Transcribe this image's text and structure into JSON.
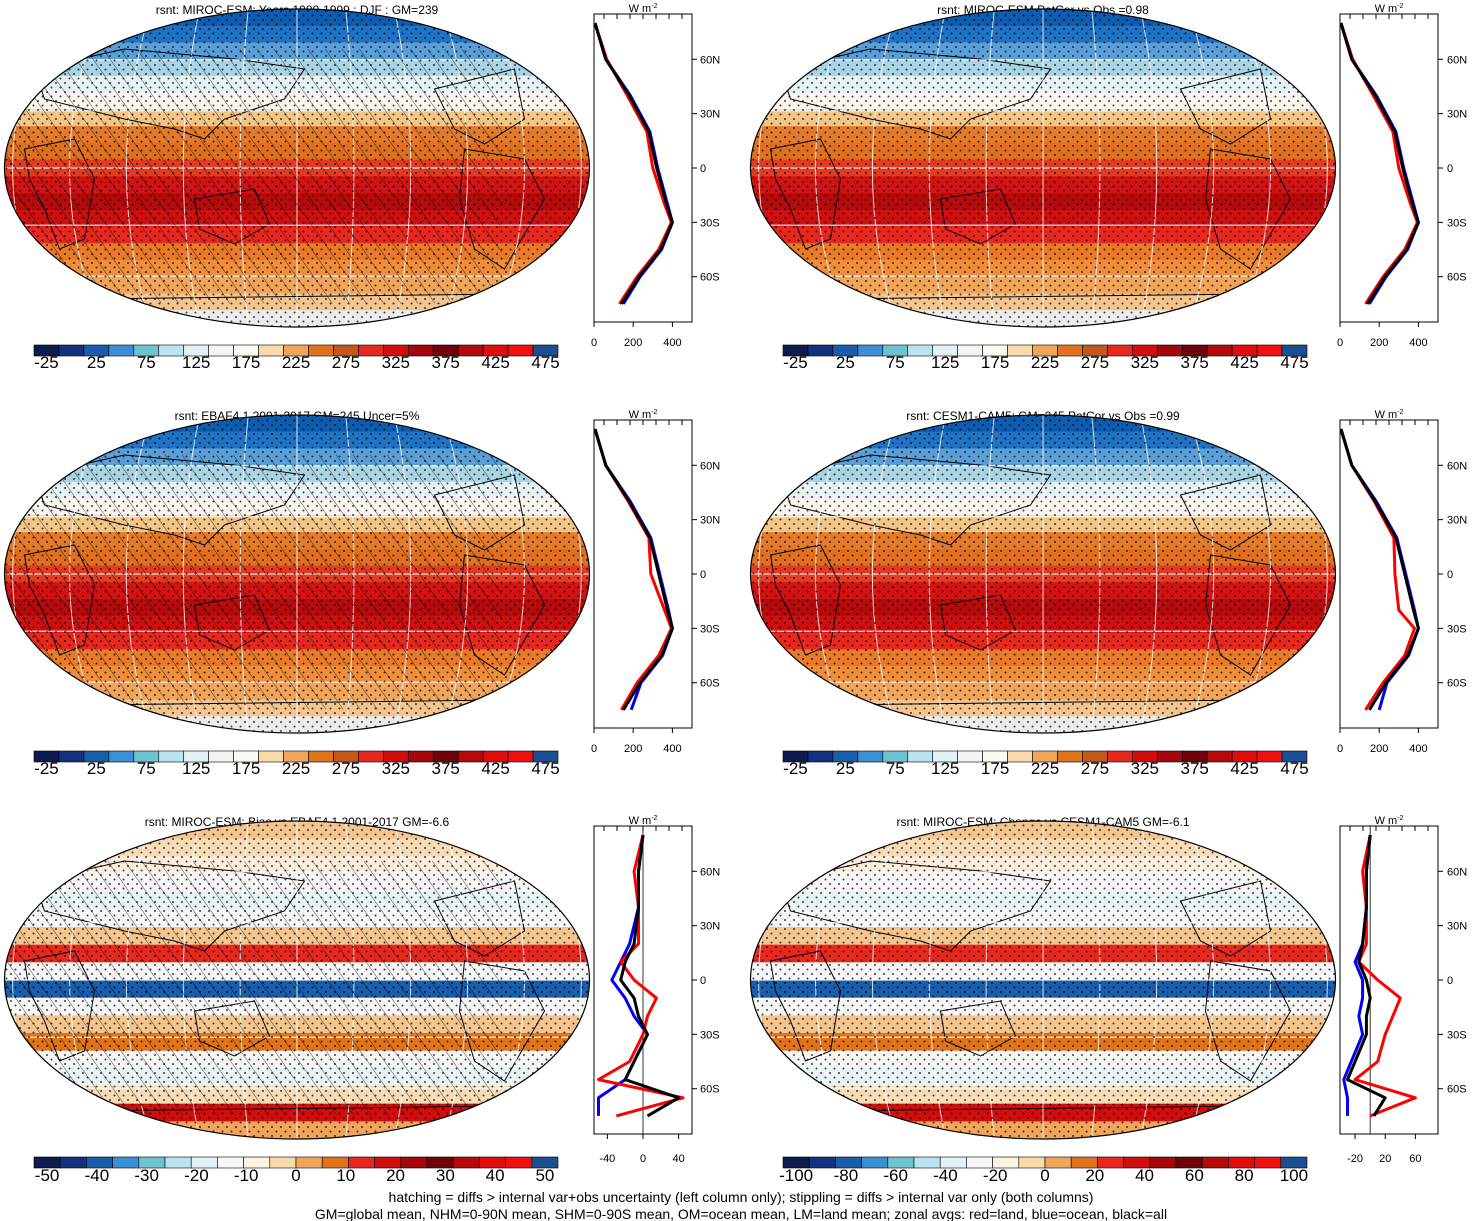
{
  "colors": {
    "land": "#ff0000",
    "ocean": "#0000ff",
    "all": "#000000"
  },
  "abs_palette": [
    "#0d1b4f",
    "#12317e",
    "#1a5dab",
    "#3b8fd4",
    "#6fc2cf",
    "#b7e4ef",
    "#e3f1f6",
    "#f4f4f4",
    "#fbfbf3",
    "#f8d9a8",
    "#f0a55a",
    "#e0741c",
    "#c4581c",
    "#e7281f",
    "#d20d0d",
    "#a4070c",
    "#6e0409",
    "#b50a0a",
    "#e00d0d",
    "#f01010",
    "#1b4f93"
  ],
  "bias_palette": [
    "#0d1b4f",
    "#12317e",
    "#1a5dab",
    "#3b8fd4",
    "#6fc2cf",
    "#b7e4ef",
    "#e3f1f6",
    "#f7f7f7",
    "#fbf3e2",
    "#f8d9a8",
    "#f0a55a",
    "#e0741c",
    "#e7281f",
    "#d20d0d",
    "#a4070c",
    "#6e0409",
    "#b50a0a",
    "#e00d0d",
    "#f01010",
    "#1b4f93"
  ],
  "panels": [
    {
      "title": "rsnt: MIROC-ESM: Years 1980-1999 : DJF : GM=239",
      "kind": "abs",
      "hatching": true,
      "colorbar_labels": [
        "-25",
        "25",
        "75",
        "125",
        "175",
        "225",
        "275",
        "325",
        "375",
        "425",
        "475"
      ],
      "zonal": {
        "unit": "W m-2",
        "xticks": [
          "0",
          "200",
          "400"
        ],
        "xmin": 0,
        "xmax": 500,
        "show_lat_labels": true
      }
    },
    {
      "title": "rsnt: MIROC-ESM PatCor vs Obs =0.98",
      "kind": "abs",
      "hatching": false,
      "colorbar_labels": [
        "-25",
        "25",
        "75",
        "125",
        "175",
        "225",
        "275",
        "325",
        "375",
        "425",
        "475"
      ],
      "zonal": {
        "unit": "W m-2",
        "xticks": [
          "0",
          "200",
          "400"
        ],
        "xmin": 0,
        "xmax": 500,
        "show_lat_labels": true
      }
    },
    {
      "title": "rsnt: EBAF4.1 2001-2017 GM=245 Uncer=5%",
      "kind": "abs",
      "hatching": true,
      "colorbar_labels": [
        "-25",
        "25",
        "75",
        "125",
        "175",
        "225",
        "275",
        "325",
        "375",
        "425",
        "475"
      ],
      "zonal": {
        "unit": "W m-2",
        "xticks": [
          "0",
          "200",
          "400"
        ],
        "xmin": 0,
        "xmax": 500,
        "show_lat_labels": true
      }
    },
    {
      "title": "rsnt: CESM1-CAM5: GM=245 PatCor vs Obs =0.99",
      "kind": "abs",
      "hatching": false,
      "colorbar_labels": [
        "-25",
        "25",
        "75",
        "125",
        "175",
        "225",
        "275",
        "325",
        "375",
        "425",
        "475"
      ],
      "zonal": {
        "unit": "W m-2",
        "xticks": [
          "0",
          "200",
          "400"
        ],
        "xmin": 0,
        "xmax": 500,
        "show_lat_labels": true
      }
    },
    {
      "title": "rsnt: MIROC-ESM: Bias vs EBAF4.1 2001-2017 GM=-6.6",
      "kind": "bias",
      "hatching": true,
      "colorbar_labels": [
        "-50",
        "-40",
        "-30",
        "-20",
        "-10",
        "0",
        "10",
        "20",
        "30",
        "40",
        "50"
      ],
      "zonal": {
        "unit": "W m-2",
        "xticks": [
          "-40",
          "0",
          "40"
        ],
        "xmin": -55,
        "xmax": 55,
        "show_lat_labels": true
      }
    },
    {
      "title": "rsnt: MIROC-ESM: Change vs CESM1-CAM5 GM=-6.1",
      "kind": "bias",
      "hatching": false,
      "colorbar_labels": [
        "-100",
        "-80",
        "-60",
        "-40",
        "-20",
        "0",
        "20",
        "40",
        "60",
        "80",
        "100"
      ],
      "zonal": {
        "unit": "W m-2",
        "xticks": [
          "-20",
          "20",
          "60"
        ],
        "xmin": -40,
        "xmax": 90,
        "show_lat_labels": true
      }
    }
  ],
  "lat_labels": [
    "60N",
    "30N",
    "0",
    "30S",
    "60S"
  ],
  "footer": {
    "line1": "hatching = diffs > internal var+obs uncertainty (left column only); stippling = diffs > internal var only (both columns)",
    "line2": "GM=global mean, NHM=0-90N mean, SHM=0-90S mean, OM=ocean mean, LM=land mean; zonal avgs: red=land, blue=ocean, black=all"
  },
  "chart_data": [
    {
      "type": "heatmap",
      "title": "rsnt: MIROC-ESM: Years 1980-1999 : DJF : GM=239",
      "colorbar": [
        -25,
        25,
        75,
        125,
        175,
        225,
        275,
        325,
        375,
        425,
        475
      ],
      "zonal_mean": {
        "lat": [
          80,
          60,
          40,
          20,
          0,
          -20,
          -30,
          -45,
          -60,
          -75
        ],
        "all": [
          5,
          60,
          180,
          280,
          320,
          370,
          400,
          340,
          230,
          140
        ],
        "land": [
          5,
          65,
          170,
          270,
          300,
          360,
          395,
          330,
          220,
          130
        ],
        "ocean": [
          5,
          60,
          185,
          285,
          325,
          375,
          400,
          345,
          235,
          150
        ]
      }
    },
    {
      "type": "heatmap",
      "title": "rsnt: MIROC-ESM PatCor vs Obs =0.98",
      "colorbar": [
        -25,
        25,
        75,
        125,
        175,
        225,
        275,
        325,
        375,
        425,
        475
      ],
      "zonal_mean": {
        "lat": [
          80,
          60,
          40,
          20,
          0,
          -20,
          -30,
          -45,
          -60,
          -75
        ],
        "all": [
          5,
          60,
          180,
          280,
          320,
          370,
          400,
          340,
          230,
          140
        ],
        "land": [
          5,
          65,
          170,
          270,
          300,
          360,
          395,
          330,
          220,
          130
        ],
        "ocean": [
          5,
          60,
          185,
          285,
          325,
          375,
          400,
          345,
          235,
          150
        ]
      }
    },
    {
      "type": "heatmap",
      "title": "rsnt: EBAF4.1 2001-2017 GM=245 Uncer=5%",
      "colorbar": [
        -25,
        25,
        75,
        125,
        175,
        225,
        275,
        325,
        375,
        425,
        475
      ],
      "zonal_mean": {
        "lat": [
          80,
          60,
          40,
          20,
          0,
          -20,
          -30,
          -45,
          -60,
          -75
        ],
        "all": [
          5,
          60,
          180,
          285,
          330,
          375,
          400,
          345,
          235,
          150
        ],
        "land": [
          5,
          60,
          175,
          280,
          290,
          360,
          395,
          330,
          220,
          140
        ],
        "ocean": [
          5,
          60,
          185,
          290,
          335,
          380,
          400,
          350,
          240,
          190
        ]
      }
    },
    {
      "type": "heatmap",
      "title": "rsnt: CESM1-CAM5: GM=245 PatCor vs Obs =0.99",
      "colorbar": [
        -25,
        25,
        75,
        125,
        175,
        225,
        275,
        325,
        375,
        425,
        475
      ],
      "zonal_mean": {
        "lat": [
          80,
          60,
          40,
          20,
          0,
          -20,
          -30,
          -45,
          -60,
          -75
        ],
        "all": [
          5,
          60,
          180,
          285,
          330,
          375,
          400,
          345,
          235,
          150
        ],
        "land": [
          5,
          60,
          175,
          275,
          280,
          300,
          380,
          330,
          220,
          130
        ],
        "ocean": [
          5,
          60,
          185,
          290,
          335,
          380,
          400,
          350,
          240,
          200
        ]
      }
    },
    {
      "type": "heatmap",
      "title": "rsnt: MIROC-ESM: Bias vs EBAF4.1 2001-2017 GM=-6.6",
      "colorbar": [
        -50,
        -40,
        -30,
        -20,
        -10,
        0,
        10,
        20,
        30,
        40,
        50
      ],
      "zonal_mean": {
        "lat": [
          80,
          60,
          40,
          20,
          10,
          0,
          -10,
          -20,
          -30,
          -45,
          -55,
          -65,
          -75
        ],
        "all": [
          0,
          -5,
          -5,
          -10,
          -20,
          -25,
          -10,
          -5,
          5,
          -10,
          -20,
          40,
          5
        ],
        "land": [
          0,
          -10,
          -5,
          -5,
          -25,
          -10,
          15,
          5,
          0,
          -15,
          -50,
          45,
          -30
        ],
        "ocean": [
          0,
          -5,
          -5,
          -15,
          -25,
          -35,
          -20,
          -10,
          5,
          -10,
          -20,
          -50,
          -50
        ]
      }
    },
    {
      "type": "heatmap",
      "title": "rsnt: MIROC-ESM: Change vs CESM1-CAM5 GM=-6.1",
      "colorbar": [
        -100,
        -80,
        -60,
        -40,
        -20,
        0,
        20,
        40,
        60,
        80,
        100
      ],
      "zonal_mean": {
        "lat": [
          80,
          60,
          40,
          20,
          10,
          0,
          -10,
          -20,
          -30,
          -45,
          -55,
          -65,
          -75
        ],
        "all": [
          0,
          -5,
          -5,
          -10,
          -15,
          -5,
          0,
          -5,
          -5,
          -20,
          -30,
          20,
          5
        ],
        "land": [
          0,
          -10,
          -5,
          -5,
          -15,
          10,
          40,
          30,
          20,
          10,
          -20,
          60,
          0
        ],
        "ocean": [
          0,
          -5,
          -5,
          -10,
          -20,
          -10,
          -10,
          -15,
          -10,
          -25,
          -35,
          -30,
          -30
        ]
      }
    }
  ]
}
